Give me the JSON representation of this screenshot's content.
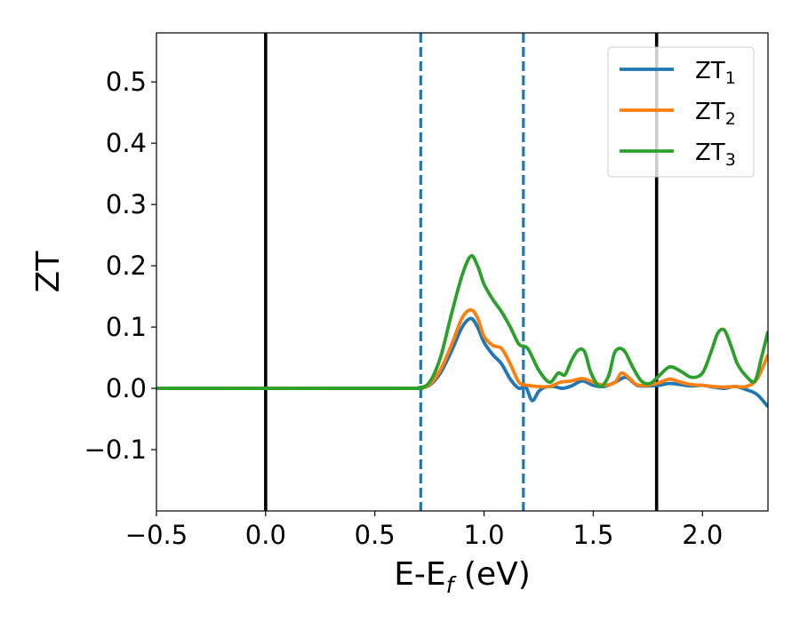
{
  "chart_data": {
    "type": "line",
    "xlabel": "E-E",
    "xlabel_sub": "f",
    "xlabel_units": " (eV)",
    "ylabel": "ZT",
    "xlim": [
      -0.5,
      2.3
    ],
    "ylim": [
      -0.2,
      0.58
    ],
    "xticks": [
      -0.5,
      0.0,
      0.5,
      1.0,
      1.5,
      2.0
    ],
    "xtick_labels": [
      "−0.5",
      "0.0",
      "0.5",
      "1.0",
      "1.5",
      "2.0"
    ],
    "yticks": [
      -0.1,
      0.0,
      0.1,
      0.2,
      0.3,
      0.4,
      0.5
    ],
    "ytick_labels": [
      "−0.1",
      "0.0",
      "0.1",
      "0.2",
      "0.3",
      "0.4",
      "0.5"
    ],
    "grid": false,
    "legend_position": "upper right",
    "vlines": [
      {
        "x": 0.0,
        "style": "solid",
        "color": "#000000"
      },
      {
        "x": 0.71,
        "style": "dashed",
        "color": "#1f77b4"
      },
      {
        "x": 1.18,
        "style": "dashed",
        "color": "#1f77b4"
      },
      {
        "x": 1.79,
        "style": "solid",
        "color": "#000000"
      }
    ],
    "series": [
      {
        "name": "ZT",
        "name_sub": "1",
        "color": "#1f77b4",
        "x": [
          -0.5,
          0.6,
          0.7,
          0.75,
          0.8,
          0.85,
          0.9,
          0.94,
          0.97,
          1.0,
          1.04,
          1.08,
          1.12,
          1.16,
          1.19,
          1.22,
          1.25,
          1.28,
          1.32,
          1.36,
          1.4,
          1.45,
          1.5,
          1.55,
          1.6,
          1.65,
          1.7,
          1.75,
          1.8,
          1.85,
          1.9,
          1.95,
          2.0,
          2.05,
          2.1,
          2.15,
          2.2,
          2.25,
          2.3
        ],
        "y": [
          0,
          0,
          0.0005,
          0.005,
          0.025,
          0.06,
          0.1,
          0.114,
          0.1,
          0.075,
          0.055,
          0.04,
          0.015,
          0.0,
          0.003,
          -0.02,
          -0.005,
          0.002,
          0.003,
          0.0,
          0.004,
          0.012,
          0.005,
          0.003,
          0.01,
          0.018,
          0.005,
          0.004,
          0.005,
          0.008,
          0.006,
          0.004,
          0.005,
          0.002,
          0.0,
          0.003,
          -0.002,
          -0.01,
          -0.03
        ]
      },
      {
        "name": "ZT",
        "name_sub": "2",
        "color": "#ff7f0e",
        "x": [
          -0.5,
          0.6,
          0.7,
          0.75,
          0.8,
          0.85,
          0.9,
          0.94,
          0.97,
          1.0,
          1.04,
          1.08,
          1.12,
          1.16,
          1.2,
          1.25,
          1.3,
          1.35,
          1.4,
          1.45,
          1.5,
          1.55,
          1.6,
          1.63,
          1.67,
          1.7,
          1.75,
          1.8,
          1.85,
          1.9,
          1.95,
          2.0,
          2.05,
          2.1,
          2.15,
          2.2,
          2.25,
          2.3
        ],
        "y": [
          0,
          0,
          0.0005,
          0.006,
          0.03,
          0.07,
          0.115,
          0.128,
          0.115,
          0.085,
          0.07,
          0.065,
          0.04,
          0.01,
          0.005,
          0.003,
          0.003,
          0.01,
          0.012,
          0.016,
          0.01,
          0.005,
          0.01,
          0.025,
          0.015,
          0.006,
          0.005,
          0.009,
          0.015,
          0.01,
          0.006,
          0.005,
          0.003,
          0.002,
          0.003,
          0.003,
          0.015,
          0.055
        ]
      },
      {
        "name": "ZT",
        "name_sub": "3",
        "color": "#2ca02c",
        "x": [
          -0.5,
          0.6,
          0.7,
          0.75,
          0.8,
          0.85,
          0.9,
          0.94,
          0.97,
          1.0,
          1.04,
          1.08,
          1.12,
          1.16,
          1.2,
          1.25,
          1.3,
          1.34,
          1.37,
          1.4,
          1.43,
          1.46,
          1.49,
          1.53,
          1.57,
          1.6,
          1.64,
          1.68,
          1.72,
          1.76,
          1.8,
          1.85,
          1.9,
          1.95,
          2.0,
          2.04,
          2.07,
          2.1,
          2.13,
          2.16,
          2.2,
          2.24,
          2.27,
          2.3
        ],
        "y": [
          0,
          0,
          0.001,
          0.01,
          0.05,
          0.12,
          0.185,
          0.216,
          0.2,
          0.17,
          0.145,
          0.125,
          0.1,
          0.072,
          0.065,
          0.03,
          0.01,
          0.025,
          0.022,
          0.045,
          0.062,
          0.06,
          0.025,
          0.003,
          0.02,
          0.06,
          0.062,
          0.035,
          0.012,
          0.008,
          0.02,
          0.035,
          0.028,
          0.018,
          0.025,
          0.06,
          0.09,
          0.095,
          0.07,
          0.04,
          0.02,
          0.012,
          0.05,
          0.093
        ]
      }
    ]
  }
}
